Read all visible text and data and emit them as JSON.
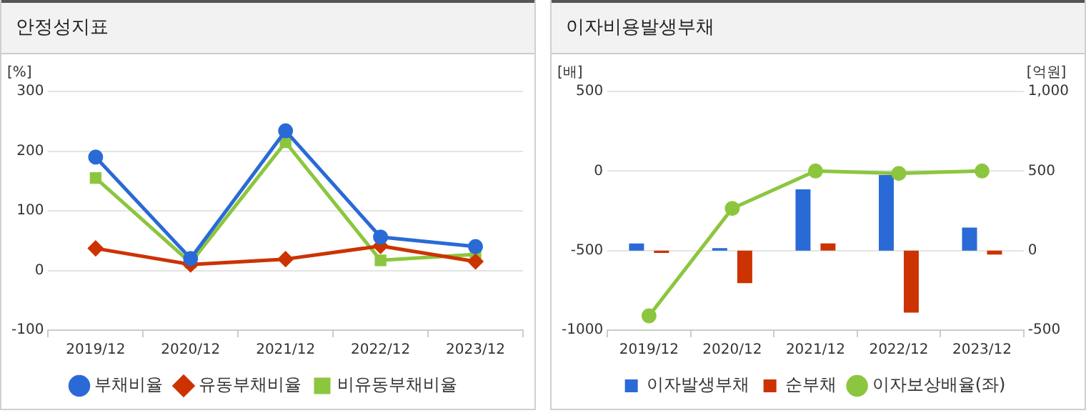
{
  "chart_data": [
    {
      "type": "line",
      "title": "안정성지표",
      "ylabel": "[%]",
      "categories": [
        "2019/12",
        "2020/12",
        "2021/12",
        "2022/12",
        "2023/12"
      ],
      "series": [
        {
          "name": "부채비율",
          "color": "#2a6ad6",
          "marker": "circle",
          "values": [
            190,
            20,
            234,
            56,
            40
          ]
        },
        {
          "name": "유동부채비율",
          "color": "#cc3300",
          "marker": "diamond",
          "values": [
            37,
            10,
            19,
            41,
            15
          ]
        },
        {
          "name": "비유동부채비율",
          "color": "#8cc63f",
          "marker": "square",
          "values": [
            155,
            13,
            215,
            17,
            27
          ]
        }
      ],
      "ylim": [
        -100,
        300
      ],
      "yticks": [
        -100,
        0,
        100,
        200,
        300
      ],
      "grid": "y",
      "legend": "bottom"
    },
    {
      "type": "bar",
      "title": "이자비용발생부채",
      "ylabel": "[배]",
      "y2label": "[억원]",
      "categories": [
        "2019/12",
        "2020/12",
        "2021/12",
        "2022/12",
        "2023/12"
      ],
      "series": [
        {
          "name": "이자발생부채",
          "color": "#2a6ad6",
          "axis": "y2",
          "values": [
            45,
            15,
            385,
            475,
            145
          ]
        },
        {
          "name": "순부채",
          "color": "#cc3300",
          "axis": "y2",
          "values": [
            -15,
            -205,
            45,
            -390,
            -25
          ]
        },
        {
          "name": "이자보상배율(좌)",
          "type": "line",
          "color": "#8cc63f",
          "marker": "circle",
          "values": [
            -910,
            -235,
            0,
            -15,
            0
          ]
        }
      ],
      "ylim": [
        -1000,
        500
      ],
      "yticks": [
        -1000,
        -500,
        0,
        500
      ],
      "y2lim": [
        -500,
        1000
      ],
      "y2ticks": [
        -500,
        0,
        500,
        {
          "value": 1000,
          "label": "1,000"
        }
      ],
      "grid": "y",
      "legend": "bottom"
    }
  ]
}
